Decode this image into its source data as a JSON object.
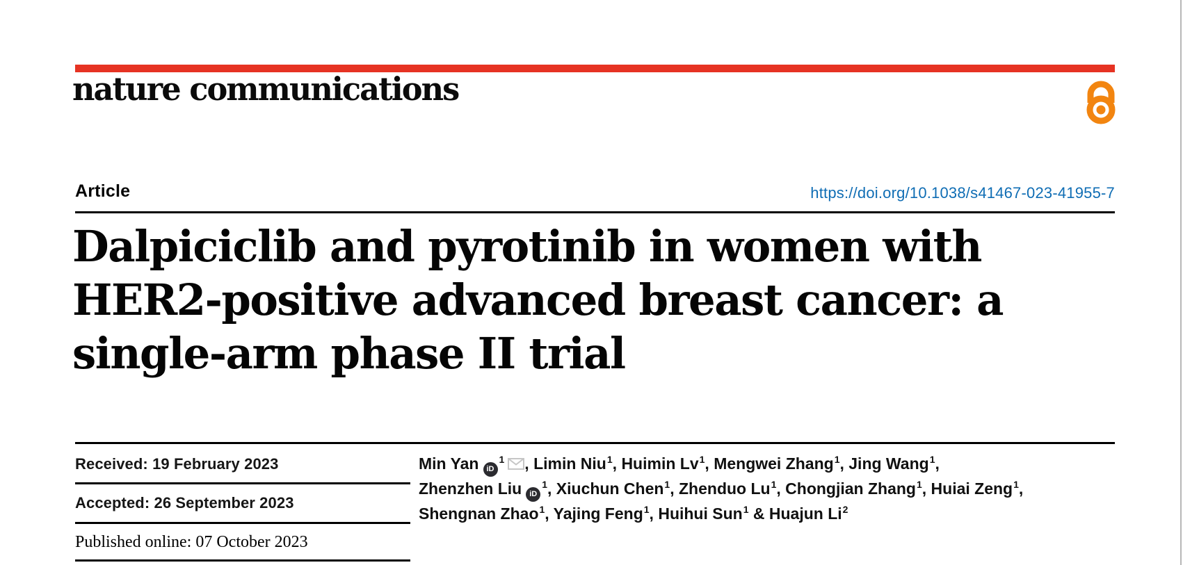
{
  "masthead": {
    "wordmark": "nature communications",
    "bar_color": "#e63323",
    "open_access_color": "#f28510"
  },
  "article_bar": {
    "kicker": "Article",
    "doi": "https://doi.org/10.1038/s41467-023-41955-7",
    "doi_color": "#0f6db4"
  },
  "title": {
    "lines": [
      "Dalpiciclib and pyrotinib in women with",
      "HER2-positive advanced breast cancer: a",
      "single-arm phase II trial"
    ]
  },
  "dates": [
    {
      "label": "Received:",
      "value": "19 February 2023"
    },
    {
      "label": "Accepted:",
      "value": "26 September 2023"
    },
    {
      "label": "Published online:",
      "value": "07 October 2023"
    }
  ],
  "authors": {
    "lines": [
      [
        {
          "name": "Min Yan",
          "orcid": true,
          "sup": "1",
          "mail": true,
          "sep": ", "
        },
        {
          "name": "Limin Niu",
          "sup": "1",
          "sep": ", "
        },
        {
          "name": "Huimin Lv",
          "sup": "1",
          "sep": ", "
        },
        {
          "name": "Mengwei Zhang",
          "sup": "1",
          "sep": ", "
        },
        {
          "name": "Jing Wang",
          "sup": "1",
          "sep": ","
        }
      ],
      [
        {
          "name": "Zhenzhen Liu",
          "orcid": true,
          "sup": "1",
          "sep": ", "
        },
        {
          "name": "Xiuchun Chen",
          "sup": "1",
          "sep": ", "
        },
        {
          "name": "Zhenduo Lu",
          "sup": "1",
          "sep": ", "
        },
        {
          "name": "Chongjian Zhang",
          "sup": "1",
          "sep": ", "
        },
        {
          "name": "Huiai Zeng",
          "sup": "1",
          "sep": ","
        }
      ],
      [
        {
          "name": "Shengnan Zhao",
          "sup": "1",
          "sep": ", "
        },
        {
          "name": "Yajing Feng",
          "sup": "1",
          "sep": ", "
        },
        {
          "name": "Huihui Sun",
          "sup": "1",
          "sep": " & "
        },
        {
          "name": "Huajun Li",
          "sup": "2",
          "sep": ""
        }
      ]
    ]
  }
}
